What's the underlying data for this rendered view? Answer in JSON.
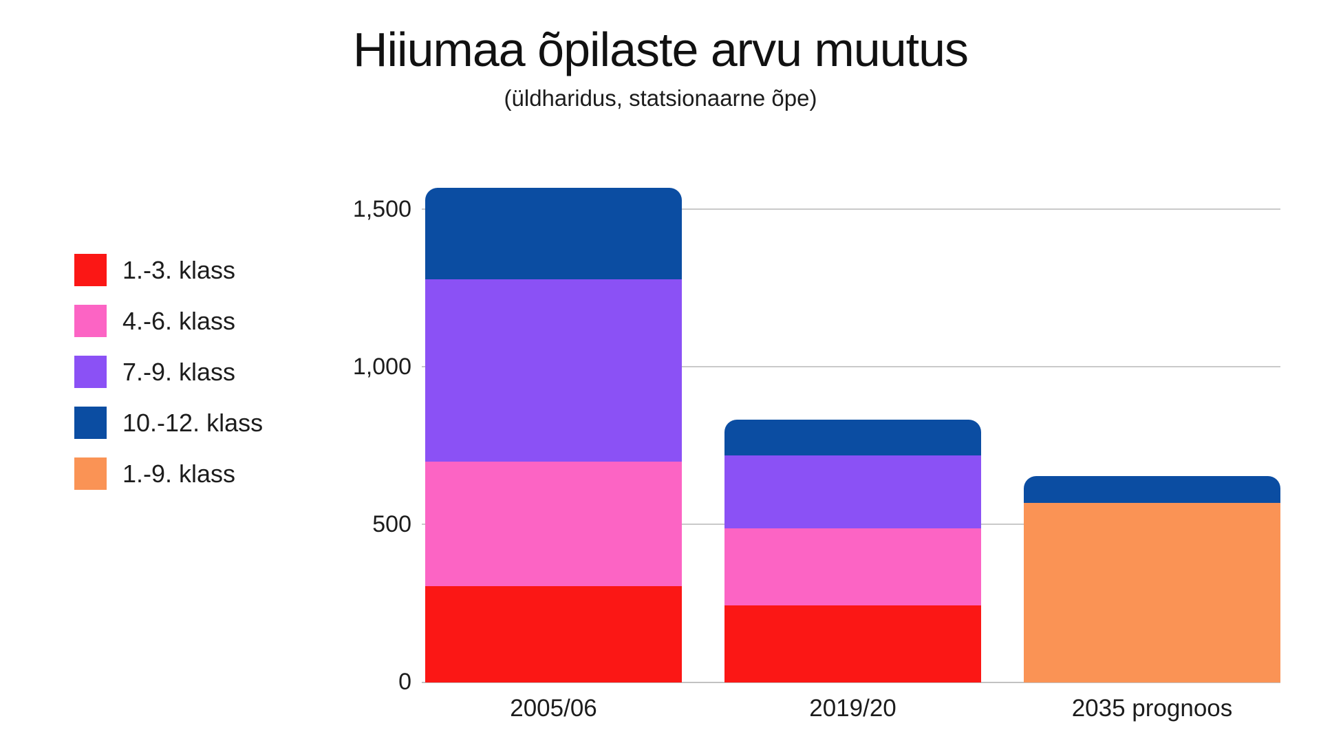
{
  "chart_data": {
    "type": "bar",
    "stacked": true,
    "title": "Hiiumaa õpilaste arvu muutus",
    "subtitle": "(üldharidus, statsionaarne õpe)",
    "categories": [
      "2005/06",
      "2019/20",
      "2035 prognoos"
    ],
    "series": [
      {
        "name": "1.-3. klass",
        "color": "#fb1715",
        "values": [
          305,
          245,
          0
        ]
      },
      {
        "name": "4.-6. klass",
        "color": "#fc64c4",
        "values": [
          395,
          245,
          0
        ]
      },
      {
        "name": "7.-9. klass",
        "color": "#8b51f5",
        "values": [
          580,
          230,
          0
        ]
      },
      {
        "name": "10.-12. klass",
        "color": "#0b4da2",
        "values": [
          290,
          115,
          85
        ]
      },
      {
        "name": "1.-9. klass",
        "color": "#fa9355",
        "values": [
          0,
          0,
          570
        ]
      }
    ],
    "stack_order": [
      "1.-3. klass",
      "4.-6. klass",
      "7.-9. klass",
      "1.-9. klass",
      "10.-12. klass"
    ],
    "totals": [
      1570,
      835,
      655
    ],
    "y_ticks": [
      {
        "label": "0",
        "value": 0
      },
      {
        "label": "500",
        "value": 500
      },
      {
        "label": "1,000",
        "value": 1000
      },
      {
        "label": "1,500",
        "value": 1500
      }
    ],
    "ylim": [
      0,
      1650
    ],
    "grid": true,
    "legend_position": "left",
    "background_color": "#ffffff",
    "gridline_color": "#c9c9c9",
    "text_color": "#1c1c1c"
  }
}
